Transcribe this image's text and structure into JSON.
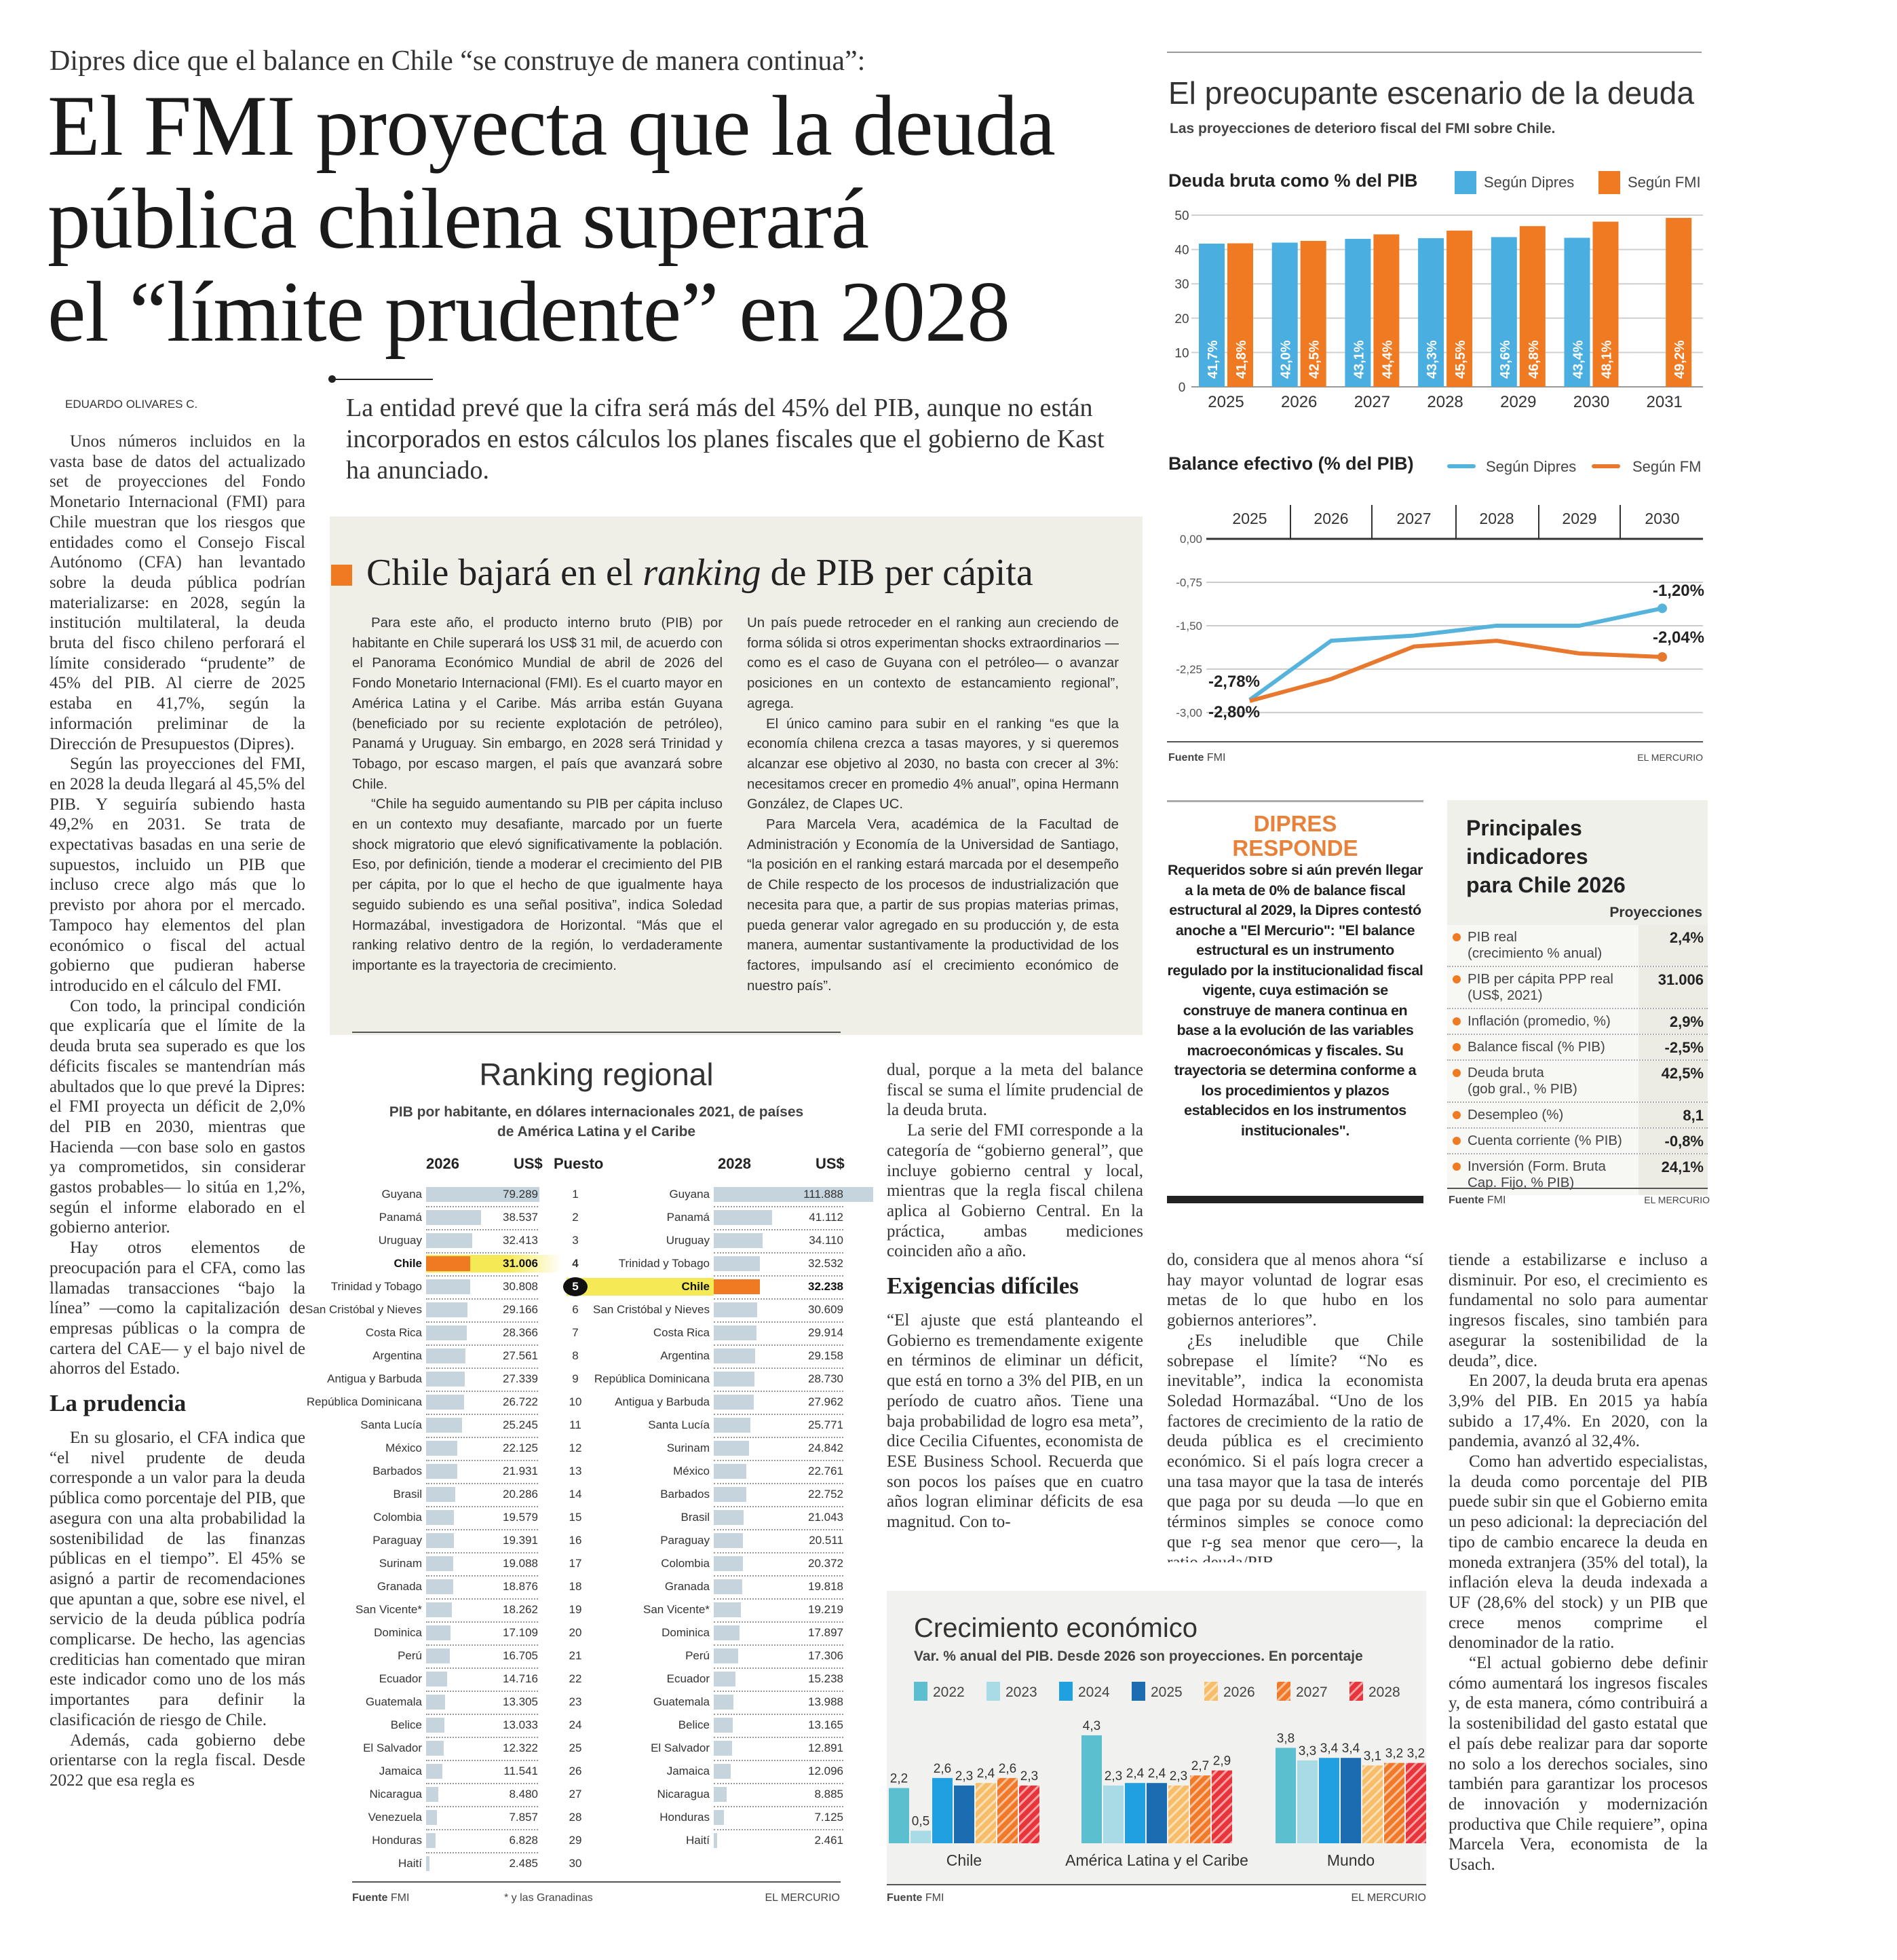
{
  "article": {
    "kicker": "Dipres dice que el balance en Chile “se construye de manera continua”:",
    "headline_lines": [
      "El FMI proyecta que la deuda",
      "pública chilena superará",
      "el “límite prudente” en 2028"
    ],
    "byline": "EDUARDO OLIVARES C.",
    "deck": "La entidad prevé que la cifra será más del 45% del PIB, aunque no están incorporados en estos cálculos los planes fiscales que el gobierno de Kast ha anunciado.",
    "col1_paragraphs_a": [
      "Unos números incluidos en la vasta base de datos del actualizado set de proyecciones del Fondo Monetario Internacional (FMI) para Chile muestran que los riesgos que entidades como el Consejo Fiscal Autónomo (CFA) han levantado sobre la deuda pública podrían materializarse: en 2028, según la institución multilateral, la deuda bruta del fisco chileno perforará el límite considerado “prudente” de 45% del PIB. Al cierre de 2025 estaba en 41,7%, según la información preliminar de la Dirección de Presupuestos (Dipres).",
      "Según las proyecciones del FMI, en 2028 la deuda llegará al 45,5% del PIB. Y seguiría subiendo hasta 49,2% en 2031. Se trata de expectativas basadas en una serie de supuestos, incluido un PIB que incluso crece algo más que lo previsto por ahora por el mercado. Tampoco hay elementos del plan económico o fiscal del actual gobierno que pudieran haberse introducido en el cálculo del FMI.",
      "Con todo, la principal condición que explicaría que el límite de la deuda bruta sea superado es que los déficits fiscales se mantendrían más abultados que lo que prevé la Dipres: el FMI proyecta un déficit de 2,0% del PIB en 2030, mientras que Hacienda —con base solo en gastos ya comprometidos, sin considerar gastos probables— lo sitúa en 1,2%, según el informe elaborado en el gobierno anterior.",
      "Hay otros elementos de preocupación para el CFA, como las llamadas transacciones “bajo la línea” —como la capitalización de empresas públicas o la compra de cartera del CAE— y el bajo nivel de ahorros del Estado."
    ],
    "subhead_1": "La prudencia",
    "col1_paragraphs_b": [
      "En su glosario, el CFA indica que “el nivel prudente de deuda corresponde a un valor para la deuda pública como porcentaje del PIB, que asegura con una alta probabilidad la sostenibilidad de las finanzas públicas en el tiempo”. El 45% se asignó a partir de recomendaciones que apuntan a que, sobre ese nivel, el servicio de la deuda pública podría complicarse. De hecho, las agencias crediticias han comentado que miran este indicador como uno de los más importantes para definir la clasificación de riesgo de Chile.",
      "Además, cada gobierno debe orientarse con la regla fiscal. Desde 2022 que esa regla es"
    ],
    "col2_paragraphs_a": [
      "dual, porque a la meta del balance fiscal se suma el límite prudencial de la deuda bruta.",
      "La serie del FMI corresponde a la categoría de “gobierno general”, que incluye gobierno central y local, mientras que la regla fiscal chilena aplica al Gobierno Central. En la práctica, ambas mediciones coinciden año a año."
    ],
    "subhead_2": "Exigencias difíciles",
    "col2_paragraphs_b": [
      "“El ajuste que está planteando el Gobierno es tremendamente exigente en términos de eliminar un déficit, que está en torno a 3% del PIB, en un período de cuatro años. Tiene una baja probabilidad de logro esa meta”, dice Cecilia Cifuentes, economista de ESE Business School. Recuerda que son pocos los países que en cuatro años logran eliminar déficits de esa magnitud. Con to-"
    ],
    "col3_paragraphs": [
      "do, considera que al menos ahora “sí hay mayor voluntad de lograr esas metas de lo que hubo en los gobiernos anteriores”.",
      "¿Es ineludible que Chile sobrepase el límite? “No es inevitable”, indica la economista Soledad Hormazábal. “Uno de los factores de crecimiento de la ratio de deuda pública es el crecimiento económico. Si el país logra crecer a una tasa mayor que la tasa de interés que paga por su deuda —lo que en términos simples se conoce como que r-g sea menor que cero—, la ratio deuda/PIB"
    ],
    "col4_paragraphs": [
      "tiende a estabilizarse e incluso a disminuir. Por eso, el crecimiento es fundamental no solo para aumentar ingresos fiscales, sino también para asegurar la sostenibilidad de la deuda”, dice.",
      "En 2007, la deuda bruta era apenas 3,9% del PIB. En 2015 ya había subido a 17,4%. En 2020, con la pandemia, avanzó al 32,4%.",
      "Como han advertido especialistas, la deuda como porcentaje del PIB puede subir sin que el Gobierno emita un peso adicional: la depreciación del tipo de cambio encarece la deuda en moneda extranjera (35% del total), la inflación eleva la deuda indexada a UF (28,6% del stock) y un PIB que crece menos comprime el denominador de la ratio.",
      "“El actual gobierno debe definir cómo aumentará los ingresos fiscales y, de esta manera, cómo contribuirá a la sostenibilidad del gasto estatal que el país debe realizar para dar soporte no solo a los derechos sociales, sino también para garantizar los procesos de innovación y modernización productiva que Chile requiere”, opina Marcela Vera, economista de la Usach."
    ]
  },
  "ranking_story": {
    "title_pre": "Chile bajará en el ",
    "title_italic": "ranking",
    "title_post": " de PIB per cápita",
    "accent_color": "#f07a22",
    "col_a": [
      "Para este año, el producto interno bruto (PIB) por habitante en Chile superará los US$ 31 mil, de acuerdo con el Panorama Económico Mundial de abril de 2026 del Fondo Monetario Internacional (FMI). Es el cuarto mayor en América Latina y el Caribe. Más arriba están Guyana (beneficiado por su reciente explotación de petróleo), Panamá y Uruguay. Sin embargo, en 2028 será Trinidad y Tobago, por escaso margen, el país que avanzará sobre Chile.",
      "“Chile ha seguido aumentando su PIB per cápita incluso en un contexto muy desafiante, marcado por un fuerte shock migratorio que elevó significativamente la población. Eso, por definición, tiende a moderar el crecimiento del PIB per cápita, por lo que el hecho de que igualmente haya seguido subiendo es una señal positiva”, indica Soledad Hormazábal, investigadora de Horizontal. “Más que el ranking relativo dentro de la región, lo verdaderamente importante es la trayectoria de crecimiento."
    ],
    "col_b": [
      "Un país puede retroceder en el ranking aun creciendo de forma sólida si otros experimentan shocks extraordinarios —como es el caso de Guyana con el petróleo— o avanzar posiciones en un contexto de estancamiento regional”, agrega.",
      "El único camino para subir en el ranking “es que la economía chilena crezca a tasas mayores, y si queremos alcanzar ese objetivo al 2030, no basta con crecer al 3%: necesitamos crecer en promedio 4% anual”, opina Hermann González, de Clapes UC.",
      "Para Marcela Vera, académica de la Facultad de Administración y Economía de la Universidad de Santiago, “la posición en el ranking estará marcada por el desempeño de Chile respecto de los procesos de industrialización que necesita para que, a partir de sus propias materias primas, pueda generar valor agregado en su producción y, de esta manera, aumentar sustantivamente la productividad de los factores, impulsando así el crecimiento económico de nuestro país”."
    ]
  },
  "ranking": {
    "title": "Ranking regional",
    "subtitle_lines": [
      "PIB por habitante, en dólares internacionales 2021, de países",
      "de América Latina y el Caribe"
    ],
    "headers": {
      "year_a": "2026",
      "usd_a": "US$",
      "puesto": "Puesto",
      "year_b": "2028",
      "usd_b": "US$"
    },
    "highlight_country": "Chile",
    "highlight_color": "#f07a22",
    "band_color": "#f5ea55",
    "bar_color": "#c6d4dd",
    "rows_2026": [
      {
        "rank": "1",
        "country": "Guyana",
        "value": "79.289"
      },
      {
        "rank": "2",
        "country": "Panamá",
        "value": "38.537"
      },
      {
        "rank": "3",
        "country": "Uruguay",
        "value": "32.413"
      },
      {
        "rank": "4",
        "country": "Chile",
        "value": "31.006"
      },
      {
        "rank": "5",
        "country": "Trinidad y Tobago",
        "value": "30.808"
      },
      {
        "rank": "6",
        "country": "San Cristóbal y Nieves",
        "value": "29.166"
      },
      {
        "rank": "7",
        "country": "Costa Rica",
        "value": "28.366"
      },
      {
        "rank": "8",
        "country": "Argentina",
        "value": "27.561"
      },
      {
        "rank": "9",
        "country": "Antigua y Barbuda",
        "value": "27.339"
      },
      {
        "rank": "10",
        "country": "República Dominicana",
        "value": "26.722"
      },
      {
        "rank": "11",
        "country": "Santa Lucía",
        "value": "25.245"
      },
      {
        "rank": "12",
        "country": "México",
        "value": "22.125"
      },
      {
        "rank": "13",
        "country": "Barbados",
        "value": "21.931"
      },
      {
        "rank": "14",
        "country": "Brasil",
        "value": "20.286"
      },
      {
        "rank": "15",
        "country": "Colombia",
        "value": "19.579"
      },
      {
        "rank": "16",
        "country": "Paraguay",
        "value": "19.391"
      },
      {
        "rank": "17",
        "country": "Surinam",
        "value": "19.088"
      },
      {
        "rank": "18",
        "country": "Granada",
        "value": "18.876"
      },
      {
        "rank": "19",
        "country": "San Vicente*",
        "value": "18.262"
      },
      {
        "rank": "20",
        "country": "Dominica",
        "value": "17.109"
      },
      {
        "rank": "21",
        "country": "Perú",
        "value": "16.705"
      },
      {
        "rank": "22",
        "country": "Ecuador",
        "value": "14.716"
      },
      {
        "rank": "23",
        "country": "Guatemala",
        "value": "13.305"
      },
      {
        "rank": "24",
        "country": "Belice",
        "value": "13.033"
      },
      {
        "rank": "25",
        "country": "El Salvador",
        "value": "12.322"
      },
      {
        "rank": "26",
        "country": "Jamaica",
        "value": "11.541"
      },
      {
        "rank": "27",
        "country": "Nicaragua",
        "value": "8.480"
      },
      {
        "rank": "28",
        "country": "Venezuela",
        "value": "7.857"
      },
      {
        "rank": "29",
        "country": "Honduras",
        "value": "6.828"
      },
      {
        "rank": "30",
        "country": "Haití",
        "value": "2.485"
      }
    ],
    "rows_2028": [
      {
        "country": "Guyana",
        "value": "111.888"
      },
      {
        "country": "Panamá",
        "value": "41.112"
      },
      {
        "country": "Uruguay",
        "value": "34.110"
      },
      {
        "country": "Trinidad y Tobago",
        "value": "32.532"
      },
      {
        "country": "Chile",
        "value": "32.238"
      },
      {
        "country": "San Cristóbal y Nieves",
        "value": "30.609"
      },
      {
        "country": "Costa Rica",
        "value": "29.914"
      },
      {
        "country": "Argentina",
        "value": "29.158"
      },
      {
        "country": "República Dominicana",
        "value": "28.730"
      },
      {
        "country": "Antigua y Barbuda",
        "value": "27.962"
      },
      {
        "country": "Santa Lucía",
        "value": "25.771"
      },
      {
        "country": "Surinam",
        "value": "24.842"
      },
      {
        "country": "México",
        "value": "22.761"
      },
      {
        "country": "Barbados",
        "value": "22.752"
      },
      {
        "country": "Brasil",
        "value": "21.043"
      },
      {
        "country": "Paraguay",
        "value": "20.511"
      },
      {
        "country": "Colombia",
        "value": "20.372"
      },
      {
        "country": "Granada",
        "value": "19.818"
      },
      {
        "country": "San Vicente*",
        "value": "19.219"
      },
      {
        "country": "Dominica",
        "value": "17.897"
      },
      {
        "country": "Perú",
        "value": "17.306"
      },
      {
        "country": "Ecuador",
        "value": "15.238"
      },
      {
        "country": "Guatemala",
        "value": "13.988"
      },
      {
        "country": "Belice",
        "value": "13.165"
      },
      {
        "country": "El Salvador",
        "value": "12.891"
      },
      {
        "country": "Jamaica",
        "value": "12.096"
      },
      {
        "country": "Nicaragua",
        "value": "8.885"
      },
      {
        "country": "Honduras",
        "value": "7.125"
      },
      {
        "country": "Haití",
        "value": "2.461"
      }
    ],
    "source_label": "Fuente",
    "source": "FMI",
    "footnote": "* y las Granadinas",
    "brand": "EL MERCURIO"
  },
  "debt_panel": {
    "title": "El preocupante escenario de la deuda",
    "subtitle": "Las proyecciones de deterioro fiscal del FMI sobre Chile.",
    "source_label": "Fuente",
    "source": "FMI",
    "brand": "EL MERCURIO"
  },
  "dipres": {
    "title_lines": [
      "DIPRES",
      "RESPONDE"
    ],
    "body": "Requeridos sobre si aún prevén llegar a la meta de 0% de balance fiscal estructural al 2029, la Dipres contestó anoche a \"El Mercurio\": \"El balance estructural es un instrumento regulado por la institucionalidad fiscal vigente, cuya estimación se construye de manera continua en base a la evolución de las variables macroeconómicas y fiscales. Su trayectoria se determina conforme a los procedimientos y plazos establecidos en los instrumentos institucionales\"."
  },
  "indicators": {
    "title_lines": [
      "Principales indicadores",
      "para Chile 2026"
    ],
    "column_header": "Proyecciones",
    "rows": [
      {
        "label": "PIB real",
        "sublabel": "(crecimiento % anual)",
        "value": "2,4%"
      },
      {
        "label": "PIB per cápita PPP real",
        "sublabel": "(US$, 2021)",
        "value": "31.006"
      },
      {
        "label": "Inflación (promedio, %)",
        "sublabel": "",
        "value": "2,9%"
      },
      {
        "label": "Balance fiscal (% PIB)",
        "sublabel": "",
        "value": "-2,5%"
      },
      {
        "label": "Deuda bruta",
        "sublabel": "(gob gral., % PIB)",
        "value": "42,5%"
      },
      {
        "label": "Desempleo (%)",
        "sublabel": "",
        "value": "8,1"
      },
      {
        "label": "Cuenta corriente (% PIB)",
        "sublabel": "",
        "value": "-0,8%"
      },
      {
        "label": "Inversión (Form. Bruta",
        "sublabel": "Cap. Fijo, % PIB)",
        "value": "24,1%"
      }
    ],
    "bullet_color": "#f07a22",
    "source_label": "Fuente",
    "source": "FMI",
    "brand": "EL MERCURIO"
  },
  "growth_panel": {
    "source_label": "Fuente",
    "source": "FMI",
    "brand": "EL MERCURIO"
  },
  "chart_data": [
    {
      "id": "deuda",
      "type": "bar",
      "title": "Deuda bruta como % del PIB",
      "categories": [
        "2025",
        "2026",
        "2027",
        "2028",
        "2029",
        "2030",
        "2031"
      ],
      "series": [
        {
          "name": "Según Dipres",
          "color": "#4aaee0",
          "values": [
            41.7,
            42.0,
            43.1,
            43.3,
            43.6,
            43.4,
            null
          ],
          "labels": [
            "41,7%",
            "42,0%",
            "43,1%",
            "43,3%",
            "43,6%",
            "43,4%",
            ""
          ]
        },
        {
          "name": "Según FMI",
          "color": "#f07a22",
          "values": [
            41.8,
            42.5,
            44.4,
            45.5,
            46.8,
            48.1,
            49.2
          ],
          "labels": [
            "41,8%",
            "42,5%",
            "44,4%",
            "45,5%",
            "46,8%",
            "48,1%",
            "49,2%"
          ]
        }
      ],
      "ylim": [
        0,
        50
      ],
      "yticks": [
        "0",
        "10",
        "20",
        "30",
        "40",
        "50"
      ],
      "grid": true,
      "legend": "top-right"
    },
    {
      "id": "balance",
      "type": "line",
      "title": "Balance efectivo (% del PIB)",
      "x": [
        "2025",
        "2026",
        "2027",
        "2028",
        "2029",
        "2030"
      ],
      "series": [
        {
          "name": "Según Dipres",
          "color": "#56b4dc",
          "values": [
            -2.78,
            -1.76,
            -1.67,
            -1.5,
            -1.5,
            -1.2
          ]
        },
        {
          "name": "Según FM",
          "color": "#e8782e",
          "values": [
            -2.8,
            -2.42,
            -1.86,
            -1.76,
            -1.98,
            -2.04
          ]
        }
      ],
      "annotations": {
        "start_dipres": "-2,78%",
        "start_fmi": "-2,80%",
        "end_dipres": "-1,20%",
        "end_fmi": "-2,04%"
      },
      "ylim": [
        -3.0,
        0
      ],
      "yticks": [
        "0,00",
        "-0,75",
        "-1,50",
        "-2,25",
        "-3,00"
      ],
      "grid": true,
      "legend": "top-right"
    },
    {
      "id": "crecimiento",
      "type": "bar",
      "title": "Crecimiento económico",
      "subtitle": "Var. % anual del PIB. Desde 2026 son proyecciones. En porcentaje",
      "categories": [
        "Chile",
        "América Latina y el Caribe",
        "Mundo"
      ],
      "series": [
        {
          "name": "2022",
          "color": "#5cbfcf",
          "hatched": false,
          "values": [
            2.2,
            4.3,
            3.8
          ]
        },
        {
          "name": "2023",
          "color": "#a8dbe6",
          "hatched": false,
          "values": [
            0.5,
            2.3,
            3.3
          ]
        },
        {
          "name": "2024",
          "color": "#20a0e0",
          "hatched": false,
          "values": [
            2.6,
            2.4,
            3.4
          ]
        },
        {
          "name": "2025",
          "color": "#1c6cb2",
          "hatched": false,
          "values": [
            2.3,
            2.4,
            3.4
          ]
        },
        {
          "name": "2026",
          "color": "#f7bd68",
          "hatched": true,
          "values": [
            2.4,
            2.3,
            3.1
          ]
        },
        {
          "name": "2027",
          "color": "#f07a2a",
          "hatched": true,
          "values": [
            2.6,
            2.7,
            3.2
          ]
        },
        {
          "name": "2028",
          "color": "#e8353b",
          "hatched": true,
          "values": [
            2.3,
            2.9,
            3.2
          ]
        }
      ],
      "value_labels": [
        [
          "2,2",
          "0,5",
          "2,6",
          "2,3",
          "2,4",
          "2,6",
          "2,3"
        ],
        [
          "4,3",
          "2,3",
          "2,4",
          "2,4",
          "2,3",
          "2,7",
          "2,9"
        ],
        [
          "3,8",
          "3,3",
          "3,4",
          "3,4",
          "3,1",
          "3,2",
          "3,2"
        ]
      ],
      "legend": "top"
    }
  ]
}
